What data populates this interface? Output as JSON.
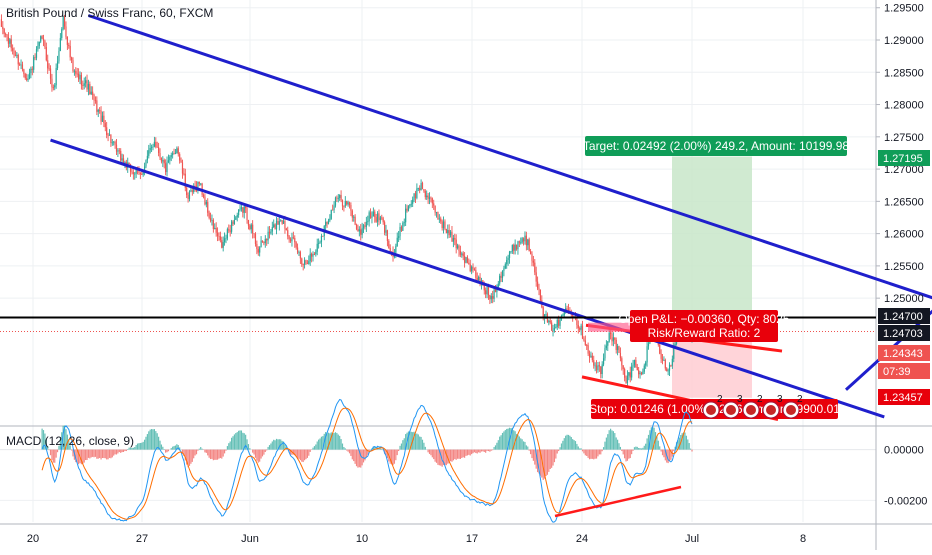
{
  "header": {
    "title": "British Pound / Swiss Franc, 60, FXCM"
  },
  "macd": {
    "title": "MACD (12, 26, close, 9)"
  },
  "colors": {
    "up": "#26a69a",
    "down": "#ef5350",
    "channel": "#1f1fcc",
    "resistance": "#000000",
    "macd_line": "#2196f3",
    "signal_line": "#ff6d00",
    "target_zone": "#c8e6c9",
    "stop_zone": "#ffcdd2",
    "target_label_bg": "#0f9d58",
    "stop_label_bg": "#e8000b",
    "trend_red": "#ff1a1a"
  },
  "price_axis": {
    "ticks": [
      "1.29500",
      "1.29000",
      "1.28500",
      "1.28000",
      "1.27500",
      "1.27000",
      "1.26500",
      "1.26000",
      "1.25500",
      "1.25000"
    ],
    "ylim": [
      1.2305,
      1.2962
    ]
  },
  "price_badges": [
    {
      "label": "1.27195",
      "color": "#0f9d58"
    },
    {
      "label": "1.24700",
      "color": "#131722"
    },
    {
      "label": "1.24703",
      "color": "#131722"
    },
    {
      "label": "1.24343",
      "color": "#ef5350"
    },
    {
      "label": "07:39",
      "color": "#ef5350"
    },
    {
      "label": "1.23457",
      "color": "#e8000b"
    }
  ],
  "macd_axis": {
    "ticks": [
      "0.00000",
      "-0.00200"
    ]
  },
  "time_axis": {
    "ticks": [
      "20",
      "27",
      "Jun",
      "10",
      "17",
      "24",
      "Jul",
      "8"
    ]
  },
  "position": {
    "target_label": "Target: 0.02492 (2.00%) 249.2, Amount: 10199.98",
    "open_pl_label": "Open P&L: −0.00360, Qty: 8025",
    "rr_label": "Risk/Reward Ratio: 2",
    "stop_label": "Stop: 0.01246 (1.00%) 124.6, Amount: 9900.01"
  },
  "event_markers": [
    "2",
    "3",
    "2",
    "3",
    "2"
  ],
  "chart_data": {
    "type": "candlestick",
    "title": "British Pound / Swiss Franc, 60, FXCM",
    "ylim": [
      1.2305,
      1.2962
    ],
    "x_ticks": [
      "20",
      "27",
      "Jun",
      "10",
      "17",
      "24",
      "Jul",
      "8"
    ],
    "anchors": [
      [
        0,
        1.2925
      ],
      [
        10,
        1.288
      ],
      [
        20,
        1.284
      ],
      [
        30,
        1.2905
      ],
      [
        38,
        1.282
      ],
      [
        45,
        1.2935
      ],
      [
        52,
        1.285
      ],
      [
        62,
        1.283
      ],
      [
        72,
        1.278
      ],
      [
        82,
        1.273
      ],
      [
        92,
        1.27
      ],
      [
        100,
        1.269
      ],
      [
        110,
        1.2745
      ],
      [
        118,
        1.27
      ],
      [
        126,
        1.2735
      ],
      [
        134,
        1.2655
      ],
      [
        142,
        1.268
      ],
      [
        150,
        1.262
      ],
      [
        158,
        1.258
      ],
      [
        166,
        1.262
      ],
      [
        174,
        1.264
      ],
      [
        184,
        1.2575
      ],
      [
        192,
        1.26
      ],
      [
        200,
        1.2625
      ],
      [
        208,
        1.259
      ],
      [
        216,
        1.2555
      ],
      [
        224,
        1.257
      ],
      [
        232,
        1.2615
      ],
      [
        240,
        1.2655
      ],
      [
        248,
        1.2645
      ],
      [
        256,
        1.26
      ],
      [
        264,
        1.263
      ],
      [
        272,
        1.262
      ],
      [
        280,
        1.2565
      ],
      [
        290,
        1.264
      ],
      [
        300,
        1.2675
      ],
      [
        310,
        1.2635
      ],
      [
        318,
        1.2605
      ],
      [
        326,
        1.258
      ],
      [
        334,
        1.255
      ],
      [
        342,
        1.2525
      ],
      [
        350,
        1.25
      ],
      [
        358,
        1.2545
      ],
      [
        366,
        1.258
      ],
      [
        374,
        1.2595
      ],
      [
        380,
        1.256
      ],
      [
        386,
        1.248
      ],
      [
        392,
        1.2455
      ],
      [
        398,
        1.246
      ],
      [
        404,
        1.249
      ],
      [
        410,
        1.247
      ],
      [
        416,
        1.244
      ],
      [
        422,
        1.24
      ],
      [
        428,
        1.2385
      ],
      [
        434,
        1.245
      ],
      [
        440,
        1.242
      ],
      [
        446,
        1.237
      ],
      [
        452,
        1.24
      ],
      [
        458,
        1.238
      ],
      [
        464,
        1.246
      ],
      [
        470,
        1.242
      ],
      [
        476,
        1.238
      ],
      [
        482,
        1.244
      ],
      [
        488,
        1.247
      ],
      [
        493,
        1.2434
      ]
    ],
    "candle_count": 494,
    "drawings": {
      "channel_upper": [
        [
          63,
          1.2938
        ],
        [
          672,
          1.2495
        ]
      ],
      "channel_lower": [
        [
          36,
          1.2745
        ],
        [
          630,
          1.2316
        ]
      ],
      "channel_extension": [
        [
          672,
          1.2495
        ],
        [
          846,
          1.2358
        ]
      ],
      "horizontal_level": 1.247,
      "target_price": 1.27195,
      "entry_price": 1.24703,
      "stop_price": 1.23457,
      "last_price": 1.24343
    },
    "macd_ylim": [
      -0.00285,
      0.00085
    ]
  }
}
